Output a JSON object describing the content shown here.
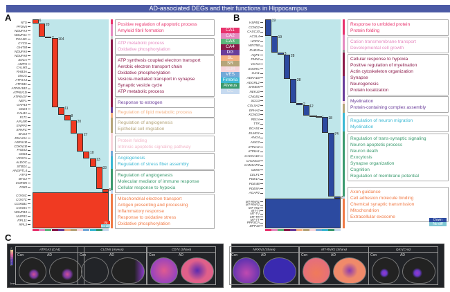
{
  "title": "AD-associated DEGs and their functions in Hippocampus",
  "regions": [
    {
      "name": "CA1",
      "color": "#e8336d"
    },
    {
      "name": "CA2",
      "color": "#e58ac0"
    },
    {
      "name": "CA3",
      "color": "#5bb77c"
    },
    {
      "name": "CA4",
      "color": "#8b1a4a"
    },
    {
      "name": "DG",
      "color": "#6a3d9a"
    },
    {
      "name": "SL",
      "color": "#f4b183"
    },
    {
      "name": "SR",
      "color": "#b5a57a"
    },
    {
      "name": "SLM",
      "color": "#f7d5dc"
    },
    {
      "name": "VES",
      "color": "#74a9d8"
    },
    {
      "name": "Fimbria",
      "color": "#3bb8d3"
    },
    {
      "name": "Alveus",
      "color": "#3a9a6e"
    },
    {
      "name": "CC",
      "color": "#c6daf0"
    }
  ],
  "panelA": {
    "label": "A",
    "color": "#f03a22",
    "counts": [
      6,
      20,
      2,
      104,
      11,
      8,
      20,
      27,
      10,
      13,
      33,
      5
    ],
    "genes": [
      "NTS",
      "PFDN5",
      "NDUFA4",
      "NDUFS1",
      "PGAM1",
      "CYCS",
      "GHITM",
      "NDUFA5",
      "NDUFA8",
      "SNCA",
      "AMPH",
      "CALM3",
      "RAB3A",
      "SNCG",
      "ATP1A3",
      "ATP1B1",
      "ATP6V1B2",
      "ATP6V1D",
      "ATP6V1F",
      "NEFL",
      "GAP43",
      "CD24",
      "CALB1",
      "FLT1",
      "APLNR",
      "ENPP2",
      "SPARC",
      "BAG3",
      "DNAJA1",
      "HSPA1B",
      "CDKN1B",
      "FADS2",
      "CD63",
      "VEGFA",
      "ALDOC",
      "STBD1",
      "ANGPTL4",
      "ATF3",
      "BTG2",
      "CHRM5",
      "PIM3"
    ],
    "shared_genes": [
      "COX6C",
      "COX7C",
      "COX6B1",
      "COX8A",
      "NDUFB4",
      "NUPR1",
      "RPL11",
      "RPL3"
    ],
    "legend": {
      "up": "Up",
      "nodiff": "No diff"
    },
    "go": [
      {
        "color": "#e8336d",
        "terms": [
          "Positive regulation of apoptotic process",
          "Amyloid fibril formation"
        ]
      },
      {
        "color": "#e58ac0",
        "terms": [
          "ATP metabolic process",
          "Oxidative phosphorylation"
        ]
      },
      {
        "color": "#8b1a4a",
        "terms": [
          "ATP synthesis coupled electron transport",
          "Aerobic electron transport chain",
          "Oxidative phosphorylation",
          "Vesicle-mediated transport in synapse",
          "Synaptic vesicle cycle",
          "ATP metabolic process"
        ]
      },
      {
        "color": "#6a3d9a",
        "terms": [
          "Response to estrogen"
        ]
      },
      {
        "color": "#f4b183",
        "terms": [
          "Regulation of lipid metabolic process"
        ]
      },
      {
        "color": "#b5a57a",
        "terms": [
          "Regulation of angiogenesis",
          "Epithelial cell migration"
        ]
      },
      {
        "color": "#f2b6c8",
        "terms": [
          "Protein folding",
          "Intrinsic apoptotic signaling pathway"
        ]
      },
      {
        "color": "#3bb8d3",
        "terms": [
          "Angiogenesis",
          "Regulation of stress fiber assembly"
        ]
      },
      {
        "color": "#3a9a6e",
        "terms": [
          "Regulation of angiogenesis",
          "Molecular mediator of immune response",
          "Cellular response to hypoxia"
        ]
      },
      {
        "color": "#f07a45",
        "terms": [
          "Mitochondrial electron transport",
          "Antigen presenting and processing",
          "Inflammatory response",
          "Response to oxidative stress",
          "Oxidative phosphorylation"
        ]
      }
    ]
  },
  "panelB": {
    "label": "B",
    "color": "#2c4aa0",
    "counts": [
      19,
      19,
      3,
      28,
      28,
      2,
      12,
      1,
      1,
      18,
      74,
      2
    ],
    "genes": [
      "HSPB1",
      "CCND2",
      "CASC10",
      "ACSL4",
      "HOPX",
      "WNT5B",
      "RAB15",
      "AQP1",
      "FMN2",
      "VCAN",
      "SNORC",
      "GJA1",
      "ADRA1B",
      "ADGRL2",
      "SAMD5",
      "NEK10",
      "CNGB1",
      "SCG3",
      "COL5A2",
      "EPHA2",
      "KCND3",
      "RELN",
      "TTR",
      "BCAS1",
      "ELMO1",
      "ANO4",
      "ASIC2",
      "ATP2A2",
      "ATP8A1",
      "CACNA1E",
      "CACNG3",
      "CAMSAP2",
      "CBX6",
      "CELF1",
      "PDE1A",
      "PDE4B",
      "PDE8A",
      "AGAP2"
    ],
    "shared_genes": [
      "MT-RNR1",
      "MT-RNR2",
      "MT-TS1",
      "MT-TI",
      "MT-TV",
      "MT-TR",
      "MT-TT",
      "PPP3CA",
      "DPP10"
    ],
    "legend": {
      "down": "Down",
      "nodiff": "No diff"
    },
    "go": [
      {
        "color": "#e8336d",
        "terms": [
          "Response to unfolded protein",
          "Protein folding"
        ]
      },
      {
        "color": "#e58ac0",
        "terms": [
          "Cation transmembrane transport",
          "Developmental cell growth"
        ]
      },
      {
        "color": "#8b1a4a",
        "terms": [
          "Cellular response to hypoxia",
          "Positive regulation of myelination",
          "Actin cytoskeleton organization",
          "Synapse",
          "Neurogenesis",
          "Protein localization"
        ]
      },
      {
        "color": "#6a3d9a",
        "terms": [
          "Myelination",
          "Protein-containing complex assembly"
        ]
      },
      {
        "color": "#3bb8d3",
        "terms": [
          "Regulation of neuron migration",
          "Myelination"
        ]
      },
      {
        "color": "#3a9a6e",
        "terms": [
          "Regulation of trans-synaptic signaling",
          "Neuron apoptotic process",
          "Neuron death",
          "Exocytosis",
          "Synapse organization",
          "Cognition",
          "Regulation of membrane potential"
        ]
      },
      {
        "color": "#f07a45",
        "terms": [
          "Axon guidance",
          "Cell adhesion molecule binding",
          "Chemical synaptic transmission",
          "Mitochondrion",
          "Extracellular exosome"
        ]
      }
    ]
  },
  "panelC": {
    "label": "C",
    "colorbar_label": "Gene Expression",
    "scale": "1mm",
    "con": "Con",
    "ad": "AD",
    "panels": [
      {
        "title": "ATP1A3 (CA4)"
      },
      {
        "title": "CLDN5 (Alveus)"
      },
      {
        "title": "CD74 (Share)"
      },
      {
        "title": "NRXN3 (Share)"
      },
      {
        "title": "MT-RNR2 (Share)"
      },
      {
        "title": "QKI (CA4)"
      }
    ]
  }
}
